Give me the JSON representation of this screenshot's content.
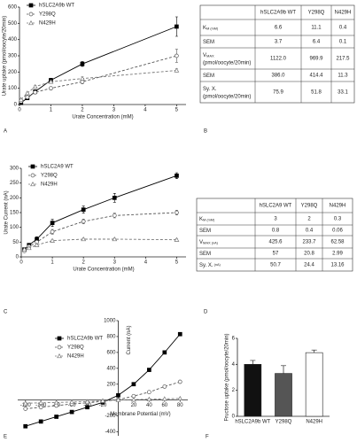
{
  "chart_data": [
    {
      "type": "line",
      "ylabel": "Urate uptake (pmol/oocyte/20min)",
      "xlabel": "Urate Concentration (mM)",
      "x": [
        0.05,
        0.25,
        0.5,
        1,
        2,
        5
      ],
      "xlim": [
        0,
        5.3
      ],
      "xticks": [
        0,
        1,
        2,
        3,
        4,
        5
      ],
      "ylim": [
        0,
        600
      ],
      "yticks": [
        0,
        100,
        200,
        300,
        400,
        500,
        600
      ],
      "legend": "upper left",
      "series": [
        {
          "name": "hSLC2A9b WT",
          "color": "#000000",
          "marker": "square",
          "filled": true,
          "dash": false,
          "values": [
            10,
            40,
            80,
            150,
            250,
            480
          ],
          "errors": [
            5,
            8,
            10,
            12,
            15,
            60
          ]
        },
        {
          "name": "Y298Q",
          "color": "#555555",
          "marker": "circle",
          "filled": false,
          "dash": true,
          "values": [
            20,
            45,
            75,
            100,
            140,
            300
          ],
          "errors": [
            5,
            8,
            10,
            10,
            12,
            40
          ]
        },
        {
          "name": "N429H",
          "color": "#777777",
          "marker": "triangle",
          "filled": false,
          "dash": true,
          "values": [
            30,
            70,
            110,
            140,
            160,
            210
          ],
          "errors": [
            5,
            6,
            8,
            8,
            10,
            10
          ]
        }
      ]
    },
    {
      "type": "line",
      "ylabel": "Urate Current (nA)",
      "xlabel": "Urate Concentration (mM)",
      "x": [
        0.1,
        0.25,
        0.5,
        1,
        2,
        3,
        5
      ],
      "xlim": [
        0,
        5.3
      ],
      "xticks": [
        0,
        1,
        2,
        3,
        4,
        5
      ],
      "ylim": [
        0,
        300
      ],
      "yticks": [
        0,
        50,
        100,
        150,
        200,
        250,
        300
      ],
      "legend": "upper left",
      "series": [
        {
          "name": "hSLC2A9 WT",
          "color": "#000000",
          "marker": "square",
          "filled": true,
          "dash": false,
          "values": [
            25,
            40,
            60,
            115,
            160,
            200,
            275
          ],
          "errors": [
            3,
            5,
            8,
            12,
            12,
            15,
            10
          ]
        },
        {
          "name": "Y298Q",
          "color": "#555555",
          "marker": "circle",
          "filled": false,
          "dash": true,
          "values": [
            20,
            35,
            50,
            85,
            120,
            140,
            150
          ],
          "errors": [
            3,
            4,
            5,
            8,
            8,
            8,
            8
          ]
        },
        {
          "name": "N429H",
          "color": "#777777",
          "marker": "triangle",
          "filled": false,
          "dash": true,
          "values": [
            25,
            30,
            40,
            55,
            60,
            60,
            58
          ],
          "errors": [
            2,
            2,
            3,
            3,
            3,
            3,
            3
          ]
        }
      ]
    },
    {
      "type": "line",
      "axes_at_zero": true,
      "ylabel": "Current (nA)",
      "xlabel": "Membrane Potential (mV)",
      "x": [
        -120,
        -100,
        -80,
        -60,
        -40,
        -20,
        0,
        20,
        40,
        60,
        80
      ],
      "xlim": [
        -130,
        90
      ],
      "xticks": [
        -120,
        -100,
        -80,
        -60,
        -40,
        -20,
        20,
        40,
        60,
        80
      ],
      "ylim": [
        -450,
        1000
      ],
      "yticks": [
        -400,
        -200,
        200,
        400,
        600,
        800,
        1000
      ],
      "legend": "upper left",
      "series": [
        {
          "name": "hSLC2A9b WT",
          "color": "#000000",
          "marker": "square",
          "filled": true,
          "dash": false,
          "values": [
            -330,
            -270,
            -210,
            -150,
            -90,
            -30,
            60,
            200,
            380,
            600,
            830
          ]
        },
        {
          "name": "Y298Q",
          "color": "#555555",
          "marker": "circle",
          "filled": false,
          "dash": true,
          "values": [
            -110,
            -90,
            -70,
            -50,
            -35,
            -15,
            5,
            50,
            100,
            170,
            230
          ]
        },
        {
          "name": "N429H",
          "color": "#777777",
          "marker": "triangle",
          "filled": false,
          "dash": true,
          "values": [
            -40,
            -35,
            -30,
            -25,
            -20,
            -10,
            0,
            5,
            10,
            15,
            20
          ]
        }
      ]
    },
    {
      "type": "bar",
      "ylabel": "Fructose uptake (pmol/oocyte/20min)",
      "categories": [
        "hSLC2A9b WT",
        "Y298Q",
        "N429H"
      ],
      "values": [
        4.0,
        3.3,
        4.9
      ],
      "errors": [
        0.3,
        0.6,
        0.2
      ],
      "colors": [
        "#111111",
        "#555555",
        "#ffffff"
      ],
      "ylim": [
        0,
        6
      ],
      "yticks": [
        0,
        2,
        4,
        6
      ]
    }
  ],
  "tables": [
    {
      "header": [
        "hSLC2A9b WT",
        "Y298Q",
        "N429H"
      ],
      "rows": [
        {
          "label": "K",
          "sub": "M",
          "unit": "(mM)",
          "values": [
            "6.6",
            "11.1",
            "0.4"
          ]
        },
        {
          "label": "SEM",
          "values": [
            "3.7",
            "6.4",
            "0.1"
          ]
        },
        {
          "label": "V",
          "sub": "MAX",
          "unit": "(pmol/oocyte/20min)",
          "values": [
            "1122.0",
            "969.9",
            "217.5"
          ]
        },
        {
          "label": "SEM",
          "values": [
            "386.0",
            "414.4",
            "11.3"
          ]
        },
        {
          "label": "Sy. X.",
          "unit": "(pmol/oocyte/20min)",
          "values": [
            "75.9",
            "51.8",
            "33.1"
          ]
        }
      ]
    },
    {
      "header": [
        "hSLC2A9 WT",
        "Y298Q",
        "N429H"
      ],
      "rows": [
        {
          "label": "K",
          "sub": "M",
          "unit": "(mM)",
          "values": [
            "3",
            "2",
            "0.3"
          ]
        },
        {
          "label": "SEM",
          "values": [
            "0.8",
            "0.4",
            "0.06"
          ]
        },
        {
          "label": "V",
          "sub": "MAX",
          "unit": "(nA)",
          "values": [
            "425.6",
            "233.7",
            "62.58"
          ]
        },
        {
          "label": "SEM",
          "values": [
            "57",
            "20.8",
            "2.99"
          ]
        },
        {
          "label": "Sy. X.",
          "unit": "(nA)",
          "values": [
            "50.7",
            "24.4",
            "13.16"
          ]
        }
      ]
    }
  ],
  "panel_labels": [
    "A",
    "B",
    "C",
    "D",
    "E",
    "F"
  ]
}
